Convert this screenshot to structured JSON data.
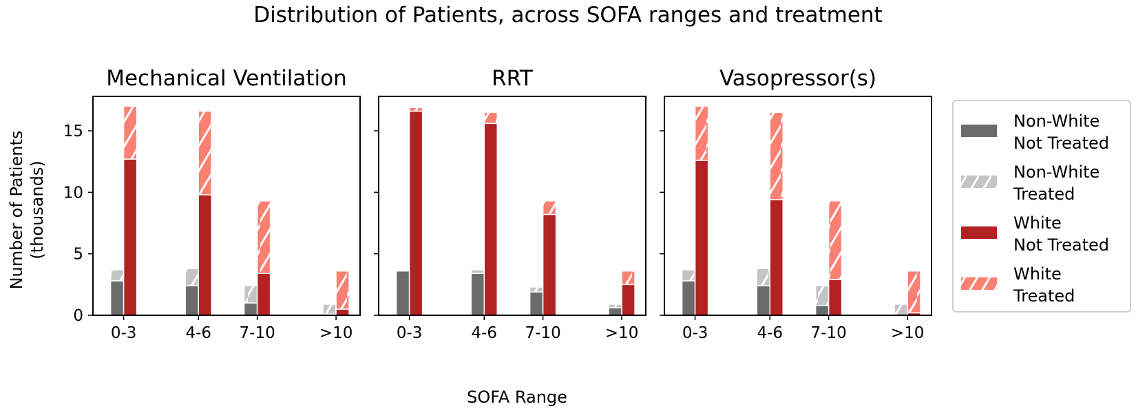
{
  "chart_data": {
    "type": "bar",
    "title": "Distribution of Patients, across SOFA ranges and treatment",
    "xlabel": "SOFA Range",
    "ylabel": "Number of Patients\n(thousands)",
    "ylim": [
      0,
      17.8
    ],
    "yticks": [
      0,
      5,
      10,
      15
    ],
    "categories": [
      "0-3",
      "4-6",
      "7-10",
      ">10"
    ],
    "stack_note": "",
    "colors": {
      "nonwhite_not": "#6b6b6b",
      "nonwhite_treated": "#c4c4c4",
      "white_not": "#b22222",
      "white_treated": "#fa8072"
    },
    "legend": {
      "placement": "outside-right",
      "entries": [
        {
          "key": "nonwhite_not",
          "line1": "Non-White",
          "line2": "Not Treated",
          "hatch": false
        },
        {
          "key": "nonwhite_treated",
          "line1": "Non-White",
          "line2": "Treated",
          "hatch": true
        },
        {
          "key": "white_not",
          "line1": "White",
          "line2": "Not Treated",
          "hatch": false
        },
        {
          "key": "white_treated",
          "line1": "White",
          "line2": "Treated",
          "hatch": true
        }
      ]
    },
    "panels": [
      {
        "title": "Mechanical Ventilation",
        "nonwhite_not_treated": [
          2.8,
          2.4,
          1.0,
          0.1
        ],
        "nonwhite_treated": [
          0.9,
          1.4,
          1.4,
          0.8
        ],
        "white_not_treated": [
          12.7,
          9.8,
          3.4,
          0.5
        ],
        "white_treated": [
          4.3,
          6.8,
          5.9,
          3.1
        ]
      },
      {
        "title": "RRT",
        "nonwhite_not_treated": [
          3.6,
          3.4,
          1.9,
          0.6
        ],
        "nonwhite_treated": [
          0.0,
          0.3,
          0.4,
          0.3
        ],
        "white_not_treated": [
          16.6,
          15.6,
          8.2,
          2.5
        ],
        "white_treated": [
          0.3,
          0.9,
          1.1,
          1.1
        ]
      },
      {
        "title": "Vasopressor(s)",
        "nonwhite_not_treated": [
          2.8,
          2.4,
          0.8,
          0.0
        ],
        "nonwhite_treated": [
          0.9,
          1.4,
          1.6,
          0.9
        ],
        "white_not_treated": [
          12.6,
          9.4,
          2.9,
          0.2
        ],
        "white_treated": [
          4.4,
          7.1,
          6.4,
          3.4
        ]
      }
    ]
  }
}
